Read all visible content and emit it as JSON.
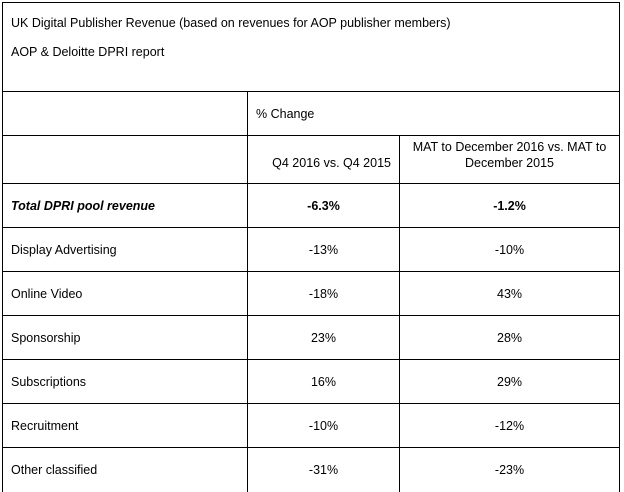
{
  "title": "UK Digital Publisher Revenue (based on revenues for AOP publisher members)",
  "subtitle": "AOP & Deloitte DPRI report",
  "pct_change_label": "% Change",
  "col_q4_label": "Q4 2016 vs. Q4 2015",
  "col_mat_label": "MAT to December 2016 vs. MAT to December 2015",
  "rows": [
    {
      "label": "Total DPRI pool revenue",
      "q4": "-6.3%",
      "mat": "-1.2%"
    },
    {
      "label": "Display Advertising",
      "q4": "-13%",
      "mat": "-10%"
    },
    {
      "label": "Online Video",
      "q4": "-18%",
      "mat": "43%"
    },
    {
      "label": "Sponsorship",
      "q4": "23%",
      "mat": "28%"
    },
    {
      "label": "Subscriptions",
      "q4": "16%",
      "mat": "29%"
    },
    {
      "label": "Recruitment",
      "q4": "-10%",
      "mat": "-12%"
    },
    {
      "label": "Other classified",
      "q4": "-31%",
      "mat": "-23%"
    }
  ]
}
